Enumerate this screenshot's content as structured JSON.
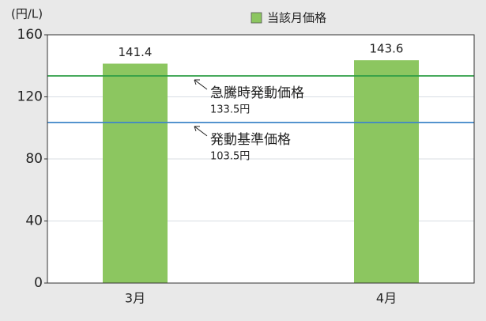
{
  "chart_data": {
    "type": "bar",
    "y_unit": "(円/L)",
    "legend": "当該月価格",
    "categories": [
      "3月",
      "4月"
    ],
    "values": [
      141.4,
      143.6
    ],
    "color": "#8cc660",
    "ylim": [
      0,
      160
    ],
    "yticks": [
      0,
      40,
      80,
      120,
      160
    ],
    "grid": true,
    "reference_lines": [
      {
        "label": "急騰時発動価格",
        "value": 133.5,
        "value_label": "133.5円",
        "color": "#2e9e46"
      },
      {
        "label": "発動基準価格",
        "value": 103.5,
        "value_label": "103.5円",
        "color": "#3f86c8"
      }
    ]
  }
}
